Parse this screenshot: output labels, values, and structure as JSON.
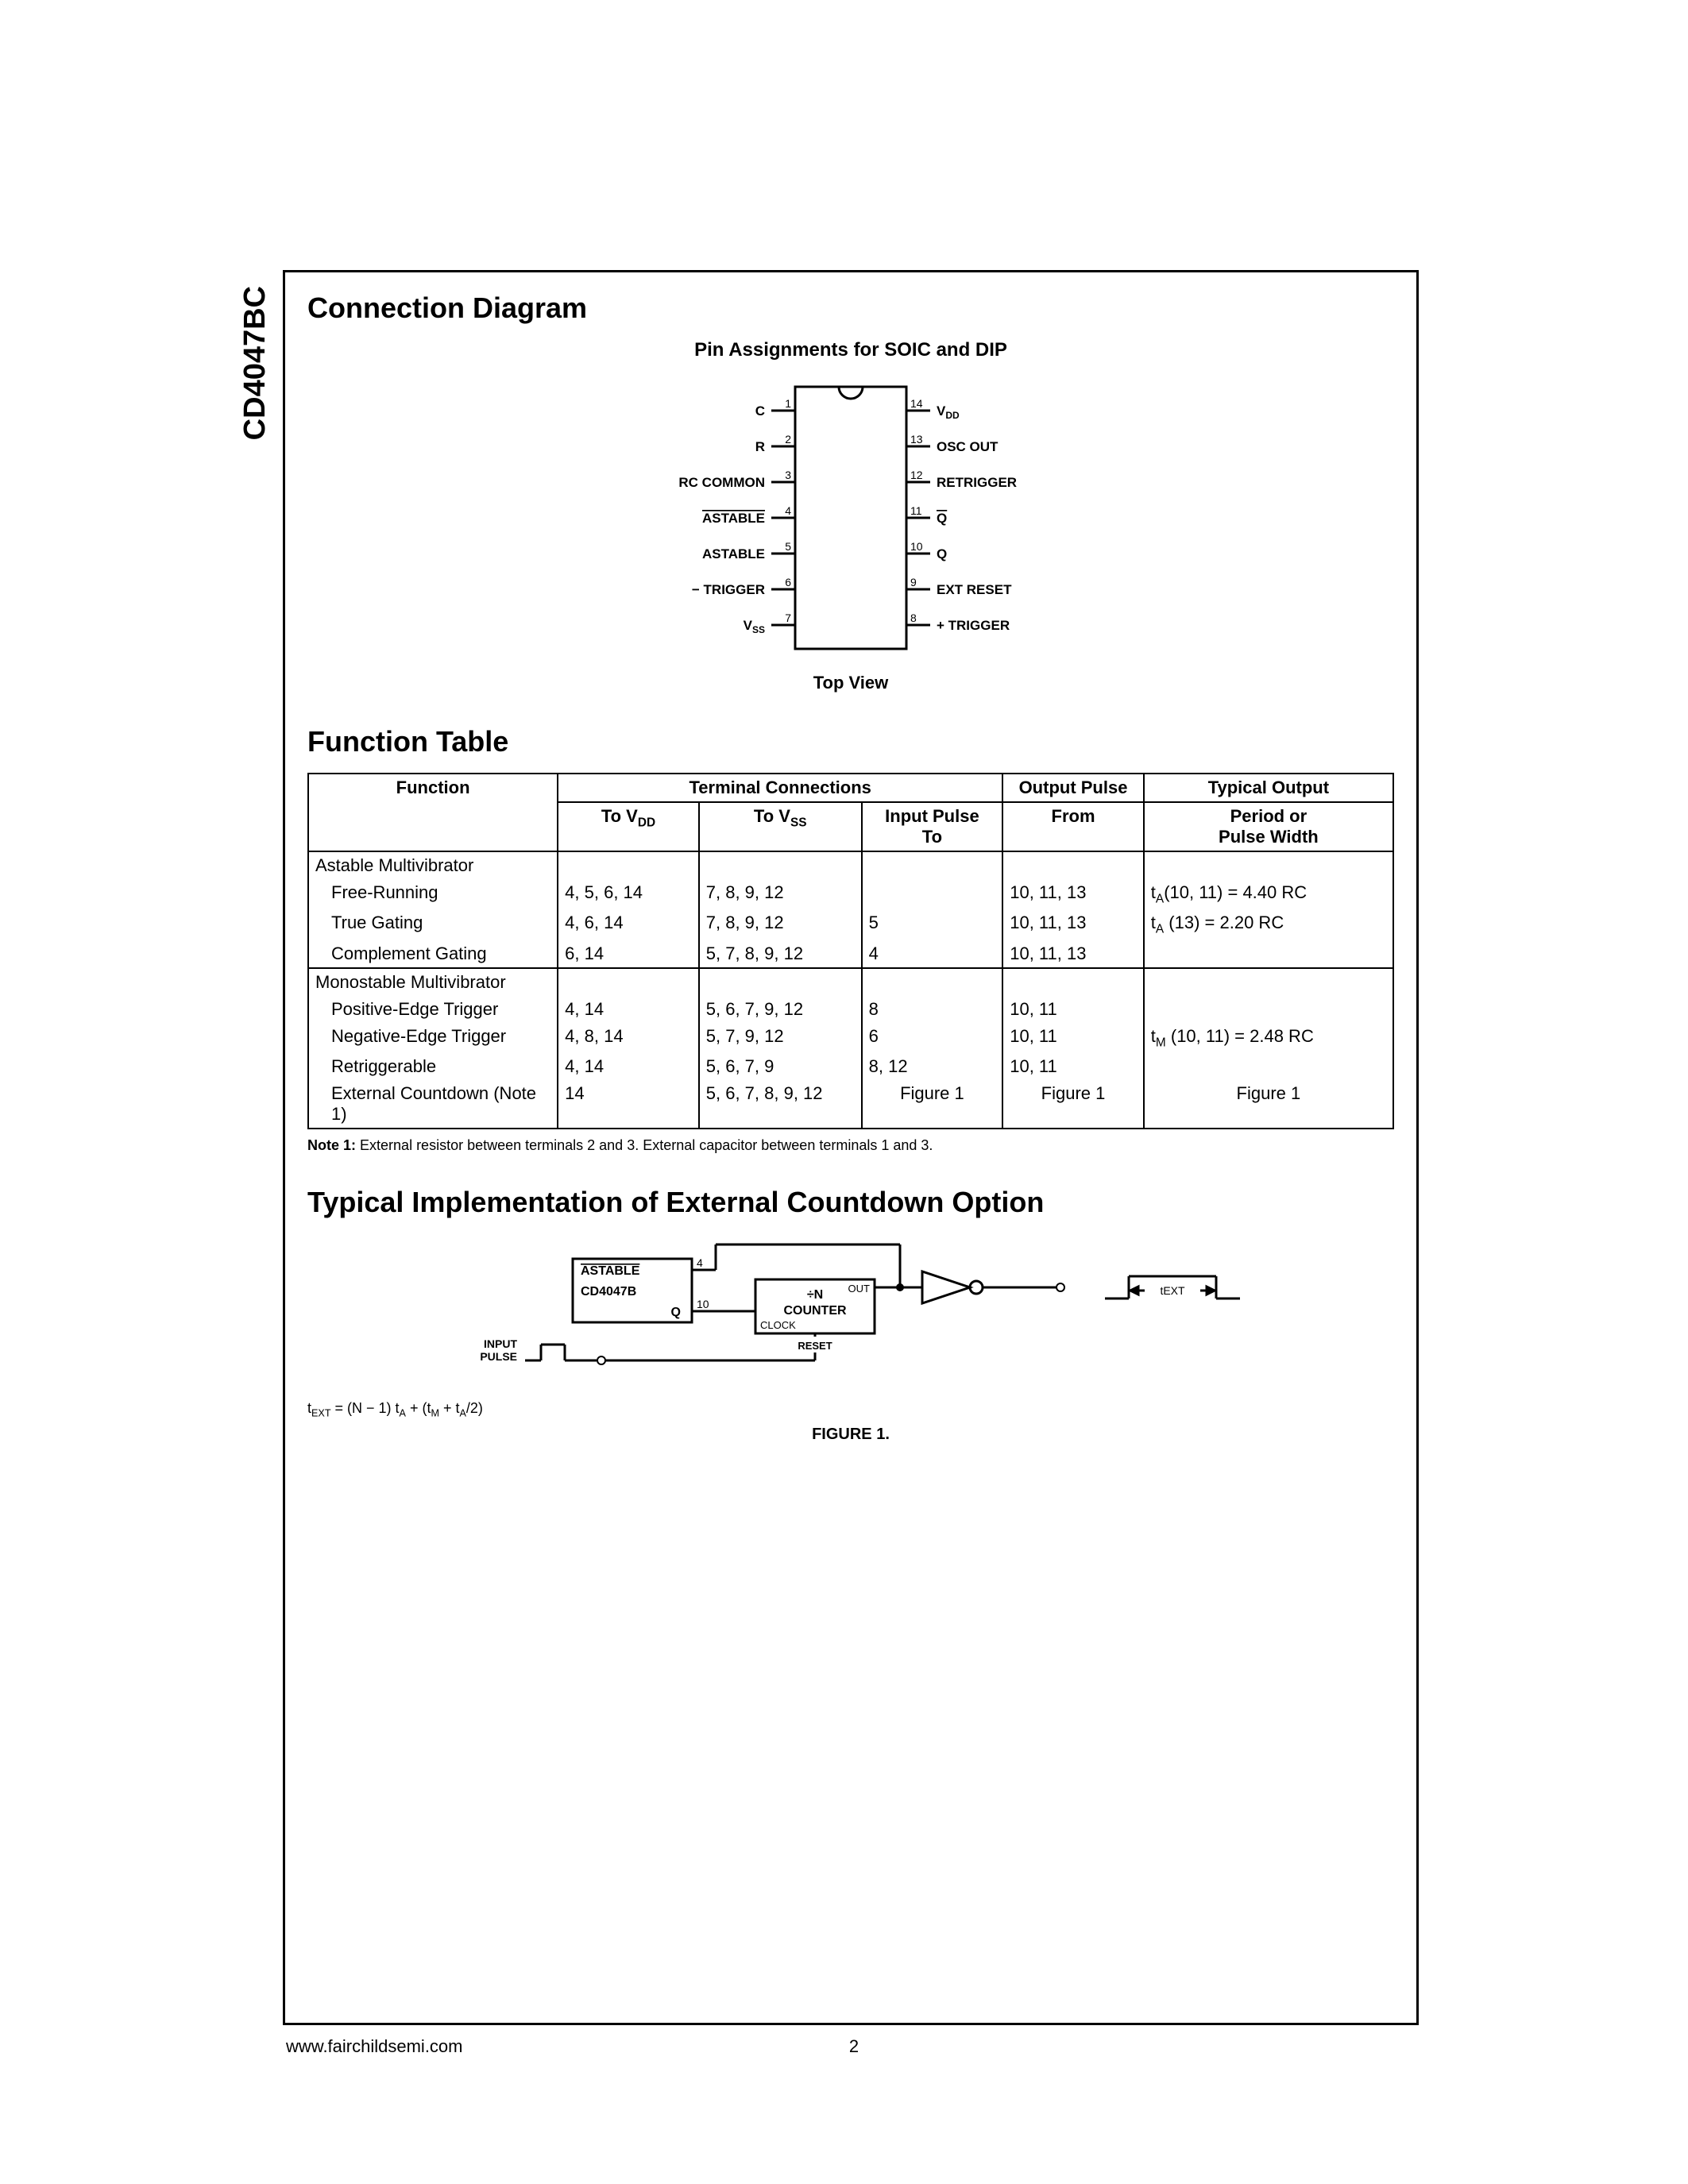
{
  "part_number": "CD4047BC",
  "sections": {
    "connection": "Connection Diagram",
    "function_table": "Function Table",
    "implementation": "Typical Implementation of External Countdown Option"
  },
  "pin_diagram": {
    "title": "Pin Assignments for SOIC and DIP",
    "caption": "Top View",
    "left_pins": [
      {
        "num": "1",
        "label": "C",
        "overline": false
      },
      {
        "num": "2",
        "label": "R",
        "overline": false
      },
      {
        "num": "3",
        "label": "RC COMMON",
        "overline": false
      },
      {
        "num": "4",
        "label": "ASTABLE",
        "overline": true
      },
      {
        "num": "5",
        "label": "ASTABLE",
        "overline": false
      },
      {
        "num": "6",
        "label": "− TRIGGER",
        "overline": false
      },
      {
        "num": "7",
        "label": "VSS",
        "overline": false,
        "sub": true
      }
    ],
    "right_pins": [
      {
        "num": "14",
        "label": "VDD",
        "overline": false,
        "sub": true
      },
      {
        "num": "13",
        "label": "OSC OUT",
        "overline": false
      },
      {
        "num": "12",
        "label": "RETRIGGER",
        "overline": false
      },
      {
        "num": "11",
        "label": "Q",
        "overline": true
      },
      {
        "num": "10",
        "label": "Q",
        "overline": false
      },
      {
        "num": "9",
        "label": "EXT RESET",
        "overline": false
      },
      {
        "num": "8",
        "label": "+ TRIGGER",
        "overline": false
      }
    ]
  },
  "function_table_data": {
    "headers": {
      "terminal_connections": "Terminal Connections",
      "output_pulse": "Output Pulse",
      "typical_output": "Typical Output",
      "function": "Function",
      "to_vdd": "To V",
      "to_vdd_sub": "DD",
      "to_vss": "To V",
      "to_vss_sub": "SS",
      "input_pulse": "Input Pulse",
      "input_pulse_to": "To",
      "from": "From",
      "period": "Period or",
      "pulse_width": "Pulse Width"
    },
    "groups": [
      {
        "title": "Astable Multivibrator",
        "rows": [
          {
            "fn": "Free-Running",
            "vdd": "4, 5, 6, 14",
            "vss": "7, 8, 9, 12",
            "inp": "",
            "from": "10, 11, 13",
            "out": "t<sub>A</sub>(10, 11) = 4.40 RC"
          },
          {
            "fn": "True Gating",
            "vdd": "4, 6, 14",
            "vss": "7, 8, 9, 12",
            "inp": "5",
            "from": "10, 11, 13",
            "out": "t<sub>A</sub> (13) = 2.20 RC"
          },
          {
            "fn": "Complement Gating",
            "vdd": "6, 14",
            "vss": "5, 7, 8, 9, 12",
            "inp": "4",
            "from": "10, 11, 13",
            "out": ""
          }
        ]
      },
      {
        "title": "Monostable Multivibrator",
        "rows": [
          {
            "fn": "Positive-Edge Trigger",
            "vdd": "4, 14",
            "vss": "5, 6, 7, 9, 12",
            "inp": "8",
            "from": "10, 11",
            "out": ""
          },
          {
            "fn": "Negative-Edge Trigger",
            "vdd": "4, 8, 14",
            "vss": "5, 7, 9, 12",
            "inp": "6",
            "from": "10, 11",
            "out": "t<sub>M</sub> (10, 11) = 2.48 RC"
          },
          {
            "fn": "Retriggerable",
            "vdd": "4, 14",
            "vss": "5, 6, 7, 9",
            "inp": "8, 12",
            "from": "10, 11",
            "out": ""
          },
          {
            "fn": "External Countdown (Note 1)",
            "vdd": "14",
            "vss": "5, 6, 7, 8, 9, 12",
            "inp": "Figure 1",
            "from": "Figure 1",
            "out": "Figure 1",
            "last": true
          }
        ]
      }
    ]
  },
  "note": {
    "label": "Note 1:",
    "text": "External resistor between terminals 2 and 3. External capacitor between terminals 1 and 3."
  },
  "figure1": {
    "labels": {
      "astable": "ASTABLE",
      "chip": "CD4047B",
      "q": "Q",
      "pin4": "4",
      "pin10": "10",
      "counter_top": "÷N",
      "counter_bottom": "COUNTER",
      "clock": "CLOCK",
      "out": "OUT",
      "reset": "RESET",
      "input_pulse1": "INPUT",
      "input_pulse2": "PULSE",
      "text": "tEXT"
    },
    "caption": "FIGURE 1.",
    "formula": "t<sub>EXT</sub> = (N − 1) t<sub>A</sub> + (t<sub>M</sub> + t<sub>A</sub>/2)"
  },
  "footer": {
    "url": "www.fairchildsemi.com",
    "page": "2"
  },
  "colors": {
    "stroke": "#000000",
    "bg": "#ffffff"
  }
}
